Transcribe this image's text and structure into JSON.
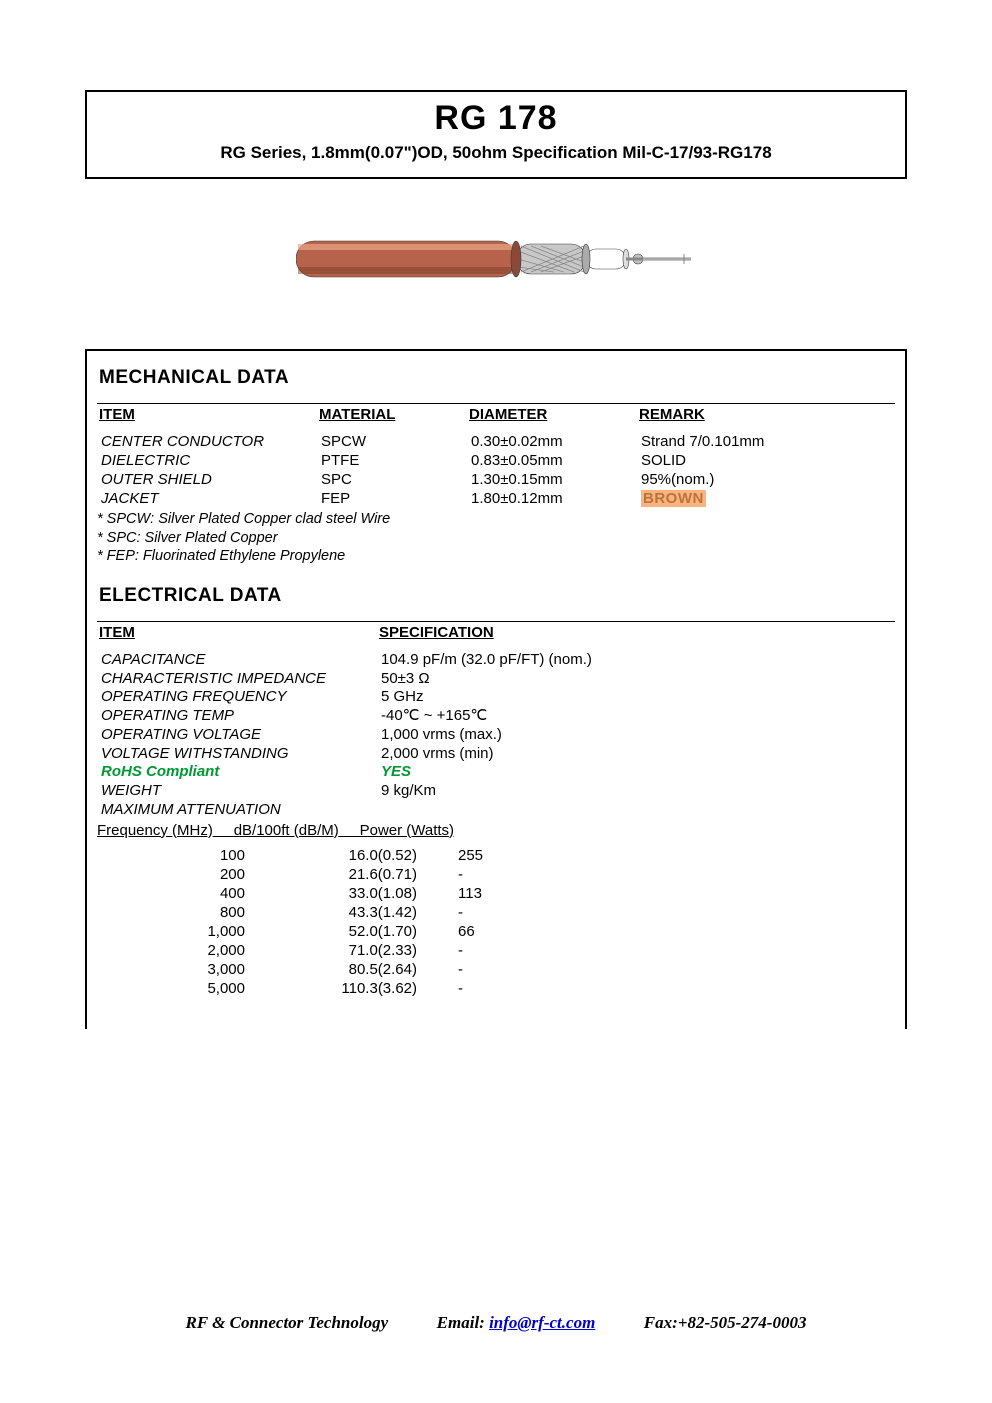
{
  "header": {
    "title": "RG 178",
    "subtitle": "RG Series, 1.8mm(0.07\")OD, 50ohm Specification Mil-C-17/93-RG178"
  },
  "diagram": {
    "jacket_color": "#b7624a",
    "jacket_highlight": "#e8a688",
    "shield_color": "#c8c8c8",
    "dielectric_color": "#ffffff",
    "conductor_color": "#b0b0b0",
    "stroke": "#3a3a3a"
  },
  "mechanical": {
    "heading": "MECHANICAL DATA",
    "columns": [
      "ITEM",
      "MATERIAL",
      "DIAMETER",
      "REMARK"
    ],
    "rows": [
      {
        "item": "CENTER CONDUCTOR",
        "material": "SPCW",
        "diameter": "0.30±0.02mm",
        "remark": "Strand 7/0.101mm"
      },
      {
        "item": "DIELECTRIC",
        "material": "PTFE",
        "diameter": "0.83±0.05mm",
        "remark": "SOLID"
      },
      {
        "item": "OUTER SHIELD",
        "material": "SPC",
        "diameter": "1.30±0.15mm",
        "remark": "95%(nom.)"
      },
      {
        "item": "JACKET",
        "material": "FEP",
        "diameter": "1.80±0.12mm",
        "remark": "BROWN",
        "remark_brown": true
      }
    ],
    "notes": [
      "* SPCW: Silver Plated Copper clad steel Wire",
      "* SPC: Silver Plated Copper",
      "* FEP: Fluorinated Ethylene Propylene"
    ]
  },
  "electrical": {
    "heading": "ELECTRICAL DATA",
    "columns": [
      "ITEM",
      "SPECIFICATION"
    ],
    "rows": [
      {
        "item": "CAPACITANCE",
        "spec": "104.9 pF/m (32.0 pF/FT) (nom.)"
      },
      {
        "item": "CHARACTERISTIC IMPEDANCE",
        "spec": "50±3 Ω"
      },
      {
        "item": "OPERATING FREQUENCY",
        "spec": "5 GHz"
      },
      {
        "item": "OPERATING TEMP",
        "spec": "-40℃  ~  +165℃"
      },
      {
        "item": "OPERATING VOLTAGE",
        "spec": "1,000 vrms (max.)"
      },
      {
        "item": "VOLTAGE WITHSTANDING",
        "spec": "2,000 vrms (min)"
      },
      {
        "item": "RoHS Compliant",
        "spec": "YES",
        "rohs": true
      },
      {
        "item": "WEIGHT",
        "spec": "9 kg/Km"
      },
      {
        "item": "MAXIMUM ATTENUATION",
        "spec": ""
      }
    ],
    "attenuation": {
      "headers": [
        "Frequency (MHz)",
        "dB/100ft (dB/M)",
        "Power (Watts)"
      ],
      "rows": [
        {
          "freq": "100",
          "db": "16.0(0.52)",
          "power": "255"
        },
        {
          "freq": "200",
          "db": "21.6(0.71)",
          "power": "-"
        },
        {
          "freq": "400",
          "db": "33.0(1.08)",
          "power": "113"
        },
        {
          "freq": "800",
          "db": "43.3(1.42)",
          "power": "-"
        },
        {
          "freq": "1,000",
          "db": "52.0(1.70)",
          "power": "66"
        },
        {
          "freq": "2,000",
          "db": "71.0(2.33)",
          "power": "-"
        },
        {
          "freq": "3,000",
          "db": "80.5(2.64)",
          "power": "-"
        },
        {
          "freq": "5,000",
          "db": "110.3(3.62)",
          "power": "-"
        }
      ]
    }
  },
  "footer": {
    "company": "RF & Connector Technology",
    "email_label": "Email: ",
    "email": "info@rf-ct.com",
    "fax_label": "Fax:",
    "fax": "+82-505-274-0003"
  }
}
